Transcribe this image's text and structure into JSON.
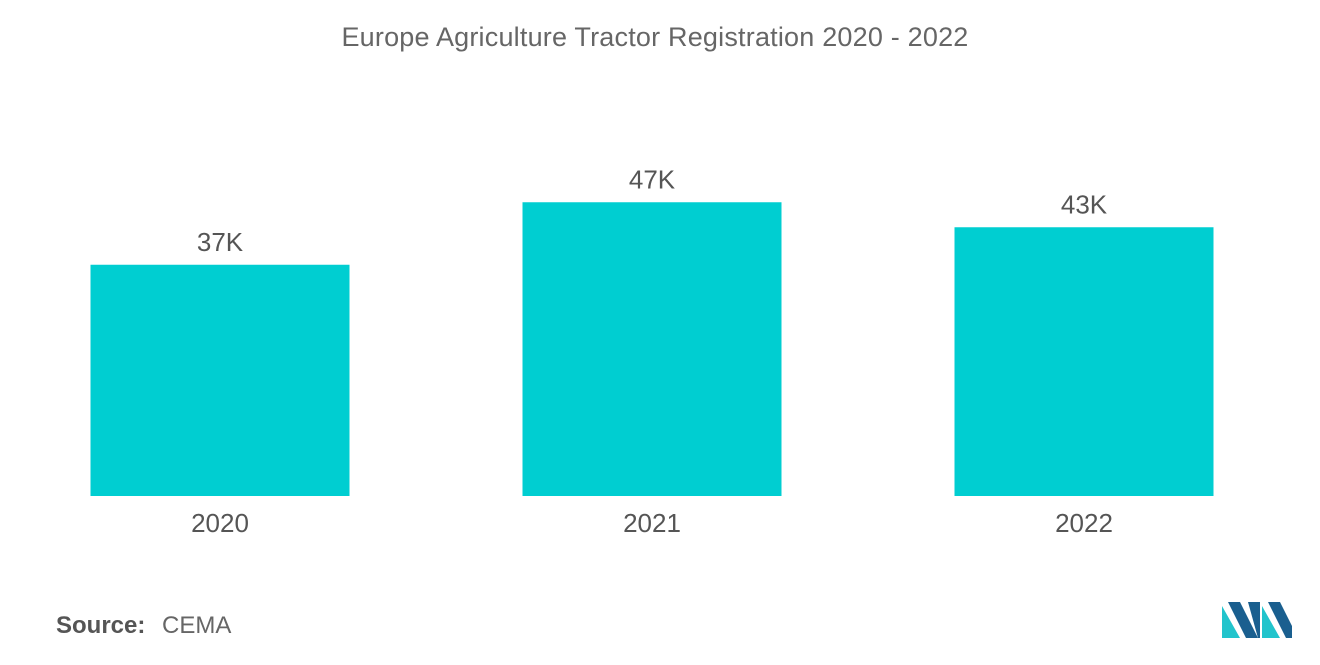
{
  "chart_data": {
    "type": "bar",
    "title": "Europe Agriculture Tractor Registration 2020 - 2022",
    "categories": [
      "2020",
      "2021",
      "2022"
    ],
    "values": [
      37,
      47,
      43
    ],
    "data_labels": [
      "37K",
      "47K",
      "43K"
    ],
    "xlabel": "",
    "ylabel": "",
    "ylim": [
      0,
      50
    ],
    "grid": false,
    "legend": "none",
    "bar_color": "#00CED1"
  },
  "source": {
    "label": "Source:",
    "value": "CEMA"
  },
  "colors": {
    "bar": "#00CED1",
    "text": "#555555",
    "logo_dark": "#1a5f8f",
    "logo_light": "#22c4cc"
  }
}
